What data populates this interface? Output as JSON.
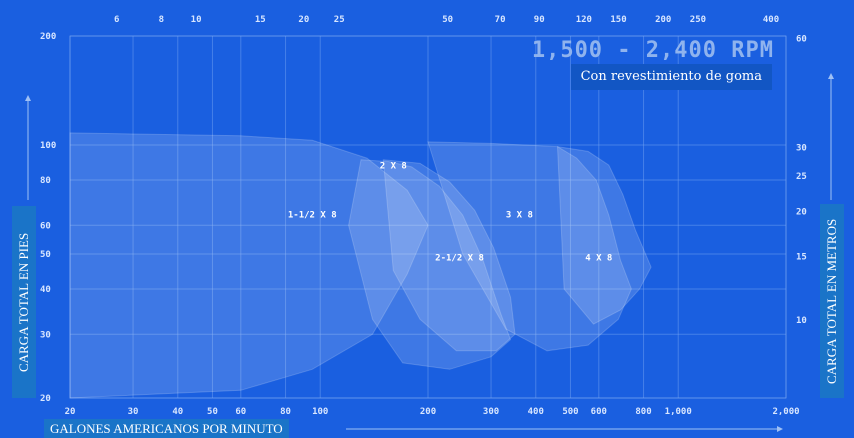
{
  "chart_data": {
    "type": "area",
    "title": "1,500 - 2,400 RPM",
    "subtitle": "Con revestimiento de goma",
    "xlabel": "GALONES AMERICANOS POR MINUTO",
    "ylabel": "CARGA TOTAL EN PIES",
    "ylabel_right": "CARGA TOTAL EN METROS",
    "x_scale": "log",
    "y_scale": "log",
    "xlim": [
      20,
      2000
    ],
    "ylim": [
      20,
      200
    ],
    "x_ticks_bottom": [
      "20",
      "30",
      "40",
      "50",
      "60",
      "80",
      "100",
      "200",
      "300",
      "400",
      "500",
      "600",
      "800",
      "1,000",
      "2,000"
    ],
    "x_ticks_bottom_values": [
      20,
      30,
      40,
      50,
      60,
      80,
      100,
      200,
      300,
      400,
      500,
      600,
      800,
      1000,
      2000
    ],
    "x_ticks_top": [
      "6",
      "8",
      "10",
      "15",
      "20",
      "25",
      "50",
      "70",
      "90",
      "120",
      "150",
      "200",
      "250",
      "400"
    ],
    "x_ticks_top_values": [
      27,
      36,
      45,
      68,
      90,
      113,
      227,
      318,
      409,
      545,
      681,
      908,
      1135,
      1816
    ],
    "y_ticks_left": [
      "20",
      "30",
      "40",
      "50",
      "60",
      "80",
      "100",
      "200"
    ],
    "y_ticks_left_values": [
      20,
      30,
      40,
      50,
      60,
      80,
      100,
      200
    ],
    "y_ticks_right": [
      "10",
      "15",
      "20",
      "25",
      "30",
      "60"
    ],
    "y_ticks_right_values": [
      32.8,
      49.2,
      65.6,
      82,
      98.4,
      196.8
    ],
    "grid": true,
    "series": [
      {
        "name": "1-1/2 X 8",
        "label_pos": [
          95,
          63
        ],
        "points": [
          [
            20,
            108
          ],
          [
            60,
            106
          ],
          [
            95,
            103
          ],
          [
            135,
            92
          ],
          [
            175,
            75
          ],
          [
            200,
            60
          ],
          [
            175,
            44
          ],
          [
            140,
            30
          ],
          [
            95,
            24
          ],
          [
            60,
            21
          ],
          [
            20,
            20
          ]
        ]
      },
      {
        "name": "2 X 8",
        "label_pos": [
          160,
          86
        ],
        "points": [
          [
            130,
            91
          ],
          [
            155,
            90
          ],
          [
            180,
            87
          ],
          [
            215,
            77
          ],
          [
            250,
            64
          ],
          [
            285,
            48
          ],
          [
            320,
            34
          ],
          [
            340,
            29
          ],
          [
            300,
            26
          ],
          [
            230,
            24
          ],
          [
            170,
            25
          ],
          [
            140,
            33
          ],
          [
            120,
            60
          ]
        ]
      },
      {
        "name": "2-1/2 X 8",
        "label_pos": [
          245,
          48
        ],
        "points": [
          [
            150,
            91
          ],
          [
            190,
            89
          ],
          [
            230,
            79
          ],
          [
            270,
            66
          ],
          [
            305,
            52
          ],
          [
            340,
            38
          ],
          [
            350,
            30
          ],
          [
            310,
            27
          ],
          [
            240,
            27
          ],
          [
            190,
            33
          ],
          [
            160,
            45
          ]
        ]
      },
      {
        "name": "3 X 8",
        "label_pos": [
          360,
          63
        ],
        "points": [
          [
            200,
            102
          ],
          [
            300,
            101
          ],
          [
            460,
            99
          ],
          [
            520,
            92
          ],
          [
            590,
            80
          ],
          [
            640,
            64
          ],
          [
            690,
            48
          ],
          [
            740,
            40
          ],
          [
            680,
            33
          ],
          [
            560,
            28
          ],
          [
            430,
            27
          ],
          [
            330,
            31
          ],
          [
            250,
            50
          ]
        ]
      },
      {
        "name": "4 X 8",
        "label_pos": [
          600,
          48
        ],
        "points": [
          [
            460,
            99
          ],
          [
            560,
            96
          ],
          [
            640,
            88
          ],
          [
            700,
            73
          ],
          [
            760,
            58
          ],
          [
            840,
            46
          ],
          [
            780,
            40
          ],
          [
            690,
            35
          ],
          [
            580,
            32
          ],
          [
            480,
            40
          ]
        ]
      }
    ]
  }
}
